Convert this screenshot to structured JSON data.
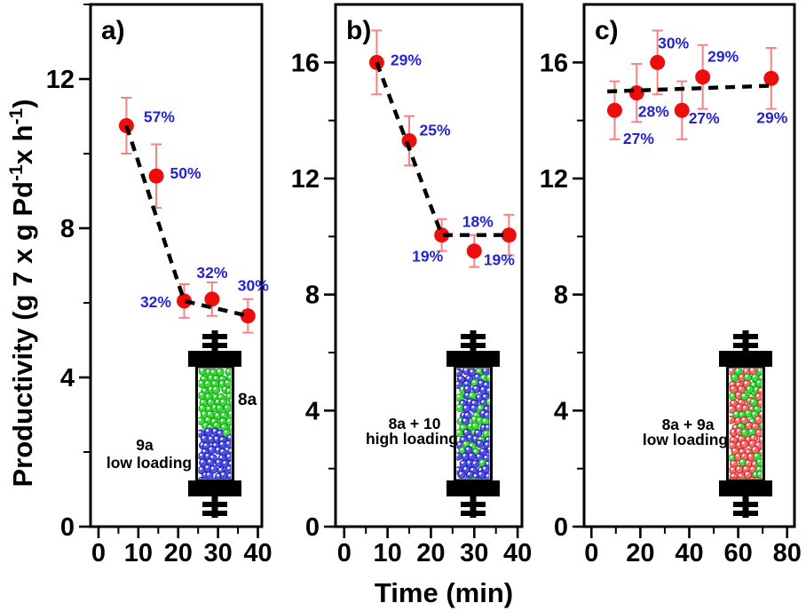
{
  "figure": {
    "xlabel": "Time (min)",
    "ylabel": {
      "p1": "Productivity (g 7 x g Pd",
      "sup1": "-1",
      "p2": "x h",
      "sup2": "-1",
      "p3": ")"
    },
    "colors": {
      "point": "#ee0d0d",
      "error_bar": "#f28484",
      "percent_label": "#2424cf",
      "trend_line": "#000000",
      "axis": "#000000",
      "bead_green": "#3fdc3f",
      "bead_green_edge": "#0f9c0f",
      "bead_blue": "#5353e6",
      "bead_blue_edge": "#1d1da8",
      "bead_red": "#f36f6f",
      "bead_red_edge": "#c22222"
    }
  },
  "chart_data": [
    {
      "id": "a",
      "panel_label": "a)",
      "type": "scatter",
      "xlabel": "Time (min)",
      "ylabel": "Productivity (g 7 x g Pd-1 x h-1)",
      "x": [
        7,
        14.5,
        21.5,
        28.5,
        37.5
      ],
      "y": [
        10.75,
        9.4,
        6.05,
        6.1,
        5.65
      ],
      "yerr": [
        0.75,
        0.85,
        0.45,
        0.45,
        0.45
      ],
      "point_labels": [
        "57%",
        "50%",
        "32%",
        "32%",
        "30%"
      ],
      "trend_line": [
        [
          7,
          10.75
        ],
        [
          21.5,
          6.05
        ],
        [
          37.5,
          5.65
        ]
      ],
      "xlim": [
        -2,
        41
      ],
      "ylim": [
        0,
        14
      ],
      "xticks": [
        0,
        10,
        20,
        30,
        40
      ],
      "xticks_minor": [
        5,
        15,
        25,
        35
      ],
      "yticks": [
        0,
        4,
        8,
        12
      ],
      "yticks_minor": [
        2,
        6,
        10,
        14
      ],
      "inset": {
        "lines": [
          "9a",
          "low loading"
        ],
        "side_label": "8a",
        "fill": "layered-green-over-blue"
      }
    },
    {
      "id": "b",
      "panel_label": "b)",
      "type": "scatter",
      "xlabel": "Time (min)",
      "ylabel": "Productivity (g 7 x g Pd-1 x h-1)",
      "x": [
        7.5,
        15,
        22.5,
        30,
        38
      ],
      "y": [
        16.0,
        13.3,
        10.05,
        9.5,
        10.05
      ],
      "yerr": [
        1.1,
        0.85,
        0.55,
        0.55,
        0.7
      ],
      "point_labels": [
        "29%",
        "25%",
        "19%",
        "18%",
        "19%"
      ],
      "trend_line": [
        [
          7.5,
          16.0
        ],
        [
          22.5,
          10.05
        ],
        [
          38,
          10.05
        ]
      ],
      "xlim": [
        -2,
        41
      ],
      "ylim": [
        0,
        18
      ],
      "xticks": [
        0,
        10,
        20,
        30,
        40
      ],
      "xticks_minor": [
        5,
        15,
        25,
        35
      ],
      "yticks": [
        0,
        4,
        8,
        12,
        16
      ],
      "yticks_minor": [
        2,
        6,
        10,
        14
      ],
      "inset": {
        "lines": [
          "8a + 10",
          "high loading"
        ],
        "side_label": "",
        "fill": "mixed-blue-green"
      }
    },
    {
      "id": "c",
      "panel_label": "c)",
      "type": "scatter",
      "xlabel": "Time (min)",
      "ylabel": "Productivity (g 7 x g Pd-1 x h-1)",
      "x": [
        9.5,
        18.5,
        27,
        37,
        45.5,
        73.5
      ],
      "y": [
        14.35,
        14.95,
        16.0,
        14.35,
        15.5,
        15.45
      ],
      "yerr": [
        1.0,
        1.0,
        1.1,
        1.0,
        1.1,
        1.05
      ],
      "point_labels": [
        "27%",
        "28%",
        "30%",
        "27%",
        "29%",
        "29%"
      ],
      "trend_line": [
        [
          6.5,
          15.0
        ],
        [
          74,
          15.2
        ]
      ],
      "xlim": [
        -3,
        83
      ],
      "ylim": [
        0,
        18
      ],
      "xticks": [
        0,
        20,
        40,
        60,
        80
      ],
      "xticks_minor": [
        10,
        30,
        50,
        70
      ],
      "yticks": [
        0,
        4,
        8,
        12,
        16
      ],
      "yticks_minor": [
        2,
        6,
        10,
        14
      ],
      "inset": {
        "lines": [
          "8a + 9a",
          "low loading"
        ],
        "side_label": "",
        "fill": "mixed-red-green"
      }
    }
  ]
}
